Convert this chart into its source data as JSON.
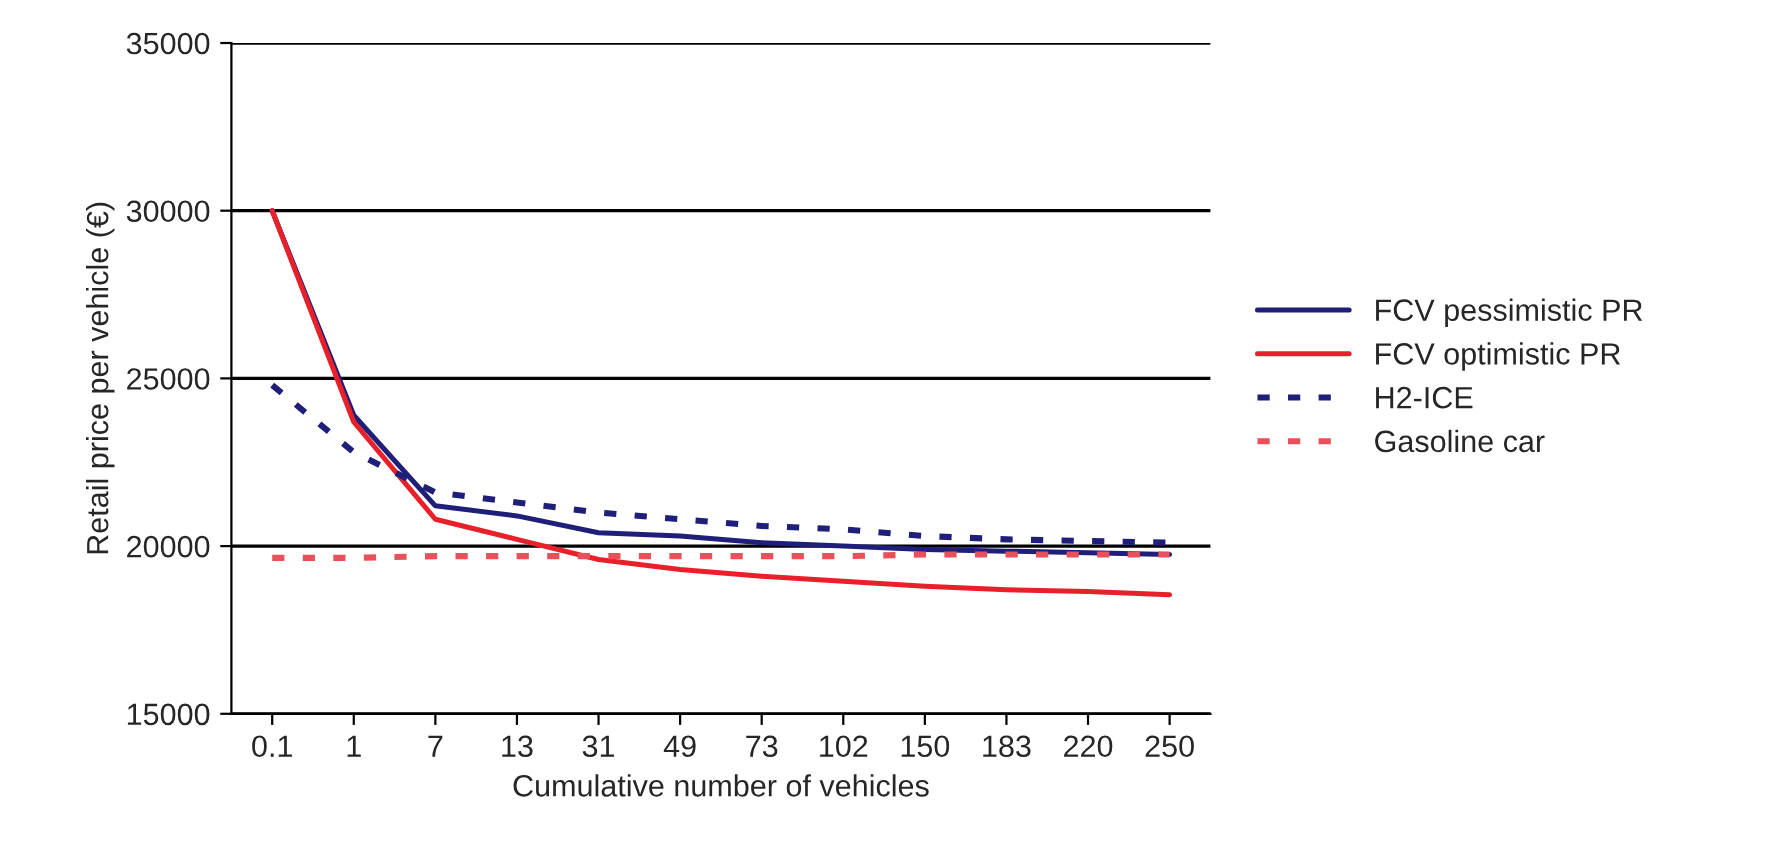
{
  "chart_data": {
    "type": "line",
    "xlabel": "Cumulative number of vehicles",
    "ylabel": "Retail price per vehicle (€)",
    "categories": [
      "0.1",
      "1",
      "7",
      "13",
      "31",
      "49",
      "73",
      "102",
      "150",
      "183",
      "220",
      "250"
    ],
    "ylim": [
      15000,
      35000
    ],
    "yticks": [
      15000,
      20000,
      25000,
      30000,
      35000
    ],
    "grid": "y",
    "legend": "right",
    "marker": "none",
    "series": [
      {
        "name": "FCV pessimistic PR",
        "color": "#1f1f7a",
        "line_style": "solid",
        "values": [
          30000,
          23900,
          21200,
          20900,
          20400,
          20300,
          20100,
          20000,
          19900,
          19850,
          19800,
          19750
        ]
      },
      {
        "name": "FCV optimistic PR",
        "color": "#e8202a",
        "line_style": "solid",
        "values": [
          30000,
          23700,
          20800,
          20200,
          19600,
          19300,
          19100,
          18950,
          18800,
          18700,
          18650,
          18550
        ]
      },
      {
        "name": "H2-ICE",
        "color": "#1f1f7a",
        "line_style": "dashed",
        "values": [
          24800,
          22800,
          21600,
          21300,
          21000,
          20800,
          20600,
          20500,
          20300,
          20200,
          20150,
          20100
        ]
      },
      {
        "name": "Gasoline car",
        "color": "#e8505a",
        "line_style": "dashed",
        "values": [
          19650,
          19650,
          19700,
          19700,
          19700,
          19700,
          19700,
          19700,
          19750,
          19750,
          19750,
          19750
        ]
      }
    ]
  }
}
